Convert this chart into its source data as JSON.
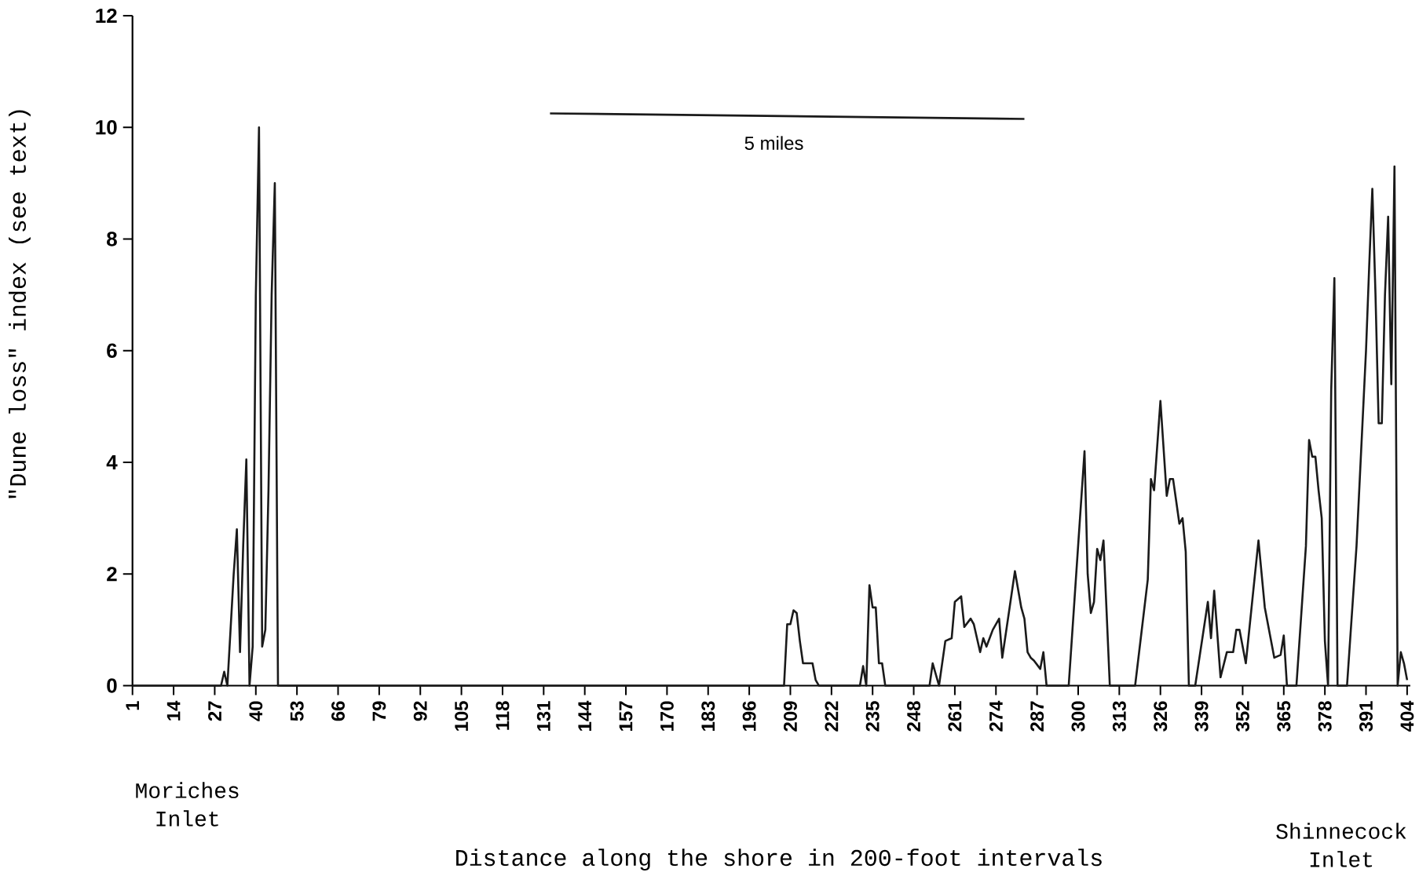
{
  "chart_data": {
    "type": "line",
    "xlabel": "Distance along the shore in 200-foot intervals",
    "ylabel": "\"Dune loss\" index (see text)",
    "annotations": [
      "5 miles",
      "Moriches Inlet",
      "Shinnecock Inlet"
    ],
    "xlim": [
      1,
      405
    ],
    "ylim": [
      0,
      12
    ],
    "xticks": [
      1,
      14,
      27,
      40,
      53,
      66,
      79,
      92,
      105,
      118,
      131,
      144,
      157,
      170,
      183,
      196,
      209,
      222,
      235,
      248,
      261,
      274,
      287,
      300,
      313,
      326,
      339,
      352,
      365,
      378,
      391,
      404
    ],
    "yticks": [
      0,
      2,
      4,
      6,
      8,
      10,
      12
    ],
    "x": [
      1,
      29,
      30,
      31,
      32,
      33,
      34,
      35,
      36,
      37,
      38,
      39,
      40,
      41,
      42,
      43,
      44,
      45,
      46,
      47,
      207,
      208,
      209,
      210,
      211,
      212,
      213,
      214,
      215,
      216,
      217,
      218,
      231,
      232,
      233,
      234,
      235,
      236,
      237,
      238,
      239,
      253,
      254,
      256,
      258,
      260,
      261,
      263,
      264,
      266,
      267,
      269,
      270,
      271,
      273,
      275,
      276,
      280,
      282,
      283,
      284,
      285,
      286,
      288,
      289,
      290,
      297,
      302,
      303,
      304,
      305,
      306,
      307,
      308,
      310,
      318,
      322,
      323,
      324,
      326,
      328,
      329,
      330,
      331,
      332,
      333,
      334,
      335,
      337,
      341,
      342,
      343,
      345,
      347,
      349,
      350,
      351,
      353,
      357,
      359,
      362,
      364,
      365,
      366,
      369,
      372,
      373,
      374,
      375,
      376,
      377,
      378,
      379,
      380,
      381,
      382,
      385,
      388,
      391,
      392,
      393,
      394,
      395,
      396,
      397,
      398,
      399,
      400,
      401,
      402,
      403,
      404
    ],
    "series": [
      {
        "color": "#1a1a1a",
        "values": [
          0,
          0,
          0.25,
          0,
          1.0,
          2.0,
          2.8,
          0.6,
          2.5,
          4.05,
          0,
          0.7,
          7,
          10,
          0.7,
          1.0,
          3.5,
          7,
          9,
          0,
          0,
          1.1,
          1.1,
          1.35,
          1.3,
          0.8,
          0.4,
          0.4,
          0.4,
          0.4,
          0.1,
          0,
          0,
          0.35,
          0,
          1.8,
          1.4,
          1.4,
          0.4,
          0.4,
          0,
          0,
          0.4,
          0,
          0.8,
          0.85,
          1.5,
          1.6,
          1.05,
          1.2,
          1.1,
          0.6,
          0.85,
          0.7,
          1.0,
          1.2,
          0.5,
          2.05,
          1.4,
          1.2,
          0.6,
          0.5,
          0.45,
          0.3,
          0.6,
          0,
          0,
          4.2,
          2.0,
          1.3,
          1.5,
          2.45,
          2.25,
          2.6,
          0,
          0,
          1.9,
          3.7,
          3.5,
          5.1,
          3.4,
          3.7,
          3.7,
          3.3,
          2.9,
          3.0,
          2.4,
          0,
          0,
          1.5,
          0.85,
          1.7,
          0.15,
          0.6,
          0.6,
          1.0,
          1.0,
          0.4,
          2.6,
          1.4,
          0.5,
          0.55,
          0.9,
          0,
          0,
          2.5,
          4.4,
          4.1,
          4.1,
          3.5,
          3.0,
          0.8,
          0,
          5.3,
          7.3,
          0,
          0,
          2.5,
          6,
          7.5,
          8.9,
          7.0,
          4.7,
          4.7,
          7.0,
          8.4,
          5.4,
          9.3,
          0,
          0.6,
          0.4,
          0.1
        ]
      },
      {
        "color": "#1a1a1a",
        "x": [
          133,
          283
        ],
        "values": [
          10.25,
          10.15
        ]
      }
    ]
  }
}
